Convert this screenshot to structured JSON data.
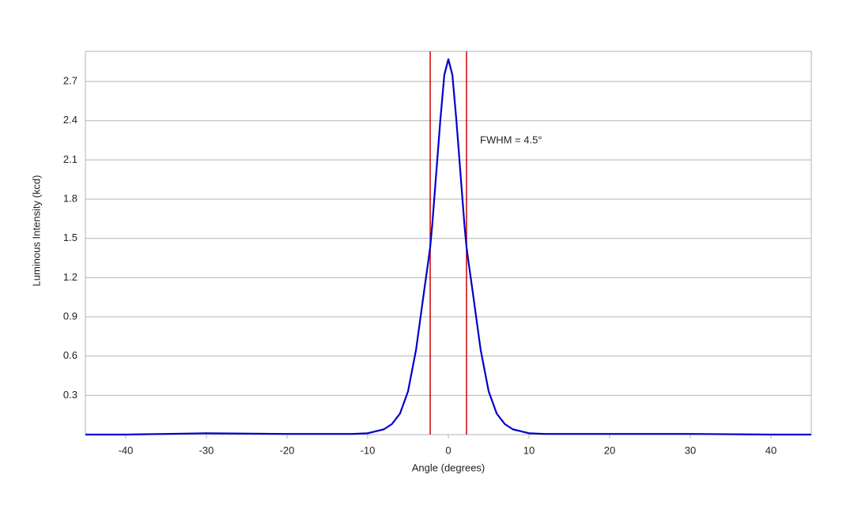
{
  "chart_data": {
    "type": "line",
    "x_label": "Angle (degrees)",
    "y_label": "Luminous Intensity (kcd)",
    "annotation": "FWHM = 4.5°",
    "x": [
      -45,
      -40,
      -30,
      -20,
      -12,
      -10,
      -8,
      -7,
      -6,
      -5,
      -4,
      -3,
      -2.5,
      -2.25,
      -2,
      -1.5,
      -1,
      -0.5,
      0,
      0.5,
      1,
      1.5,
      2,
      2.25,
      2.5,
      3,
      4,
      5,
      6,
      7,
      8,
      10,
      12,
      20,
      30,
      40,
      45
    ],
    "series": [
      {
        "name": "Luminous Intensity",
        "color": "#0000cc",
        "values": [
          0,
          0,
          0.01,
          0.005,
          0.005,
          0.01,
          0.04,
          0.08,
          0.16,
          0.33,
          0.65,
          1.1,
          1.32,
          1.435,
          1.6,
          2.0,
          2.4,
          2.75,
          2.87,
          2.75,
          2.4,
          2.0,
          1.6,
          1.435,
          1.32,
          1.1,
          0.65,
          0.33,
          0.16,
          0.08,
          0.04,
          0.01,
          0.005,
          0.005,
          0.005,
          0,
          0
        ]
      }
    ],
    "vlines": [
      -2.25,
      2.25
    ],
    "vline_color": "#cc0000",
    "xlim": [
      -45,
      45
    ],
    "ylim": [
      0,
      2.93
    ],
    "xticks": [
      -40,
      -30,
      -20,
      -10,
      0,
      10,
      20,
      30,
      40
    ],
    "yticks": [
      0.3,
      0.6,
      0.9,
      1.2,
      1.5,
      1.8,
      2.1,
      2.4,
      2.7
    ],
    "grid": true
  }
}
